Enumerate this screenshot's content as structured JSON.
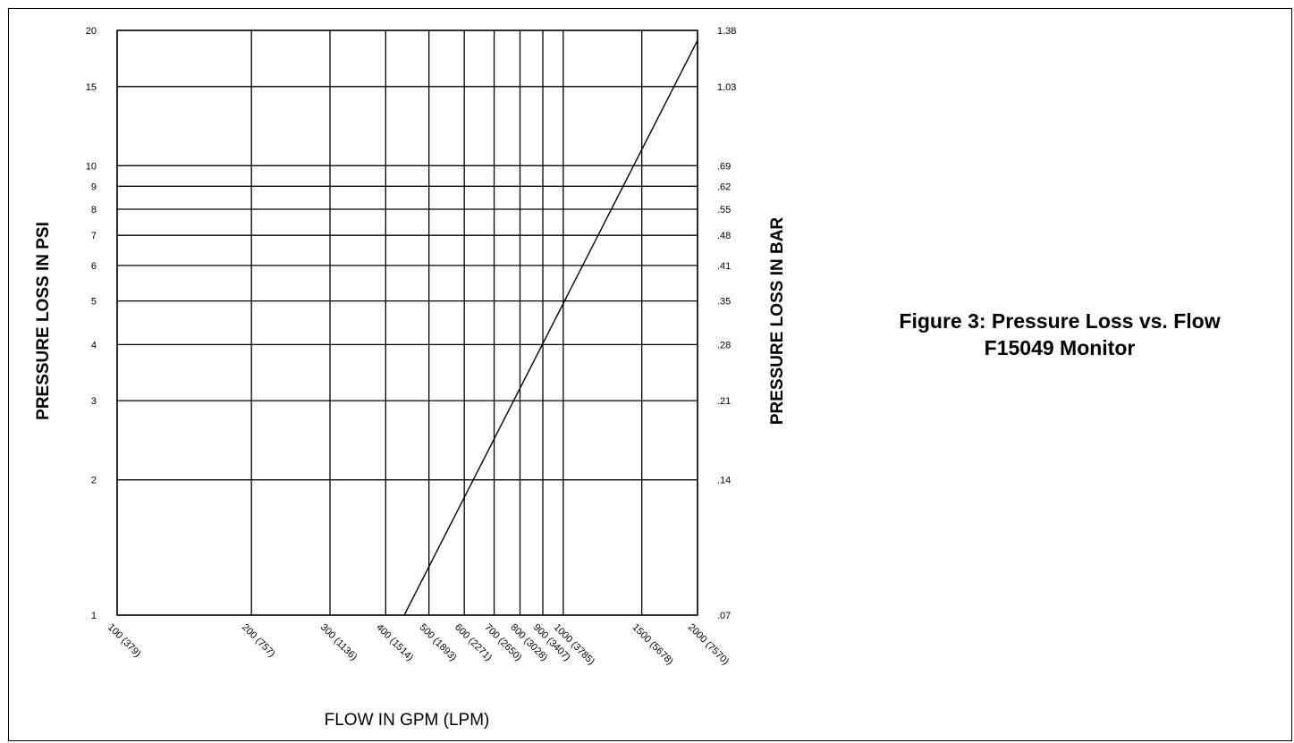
{
  "figure": {
    "caption_line1": "Figure 3: Pressure Loss vs. Flow",
    "caption_line2": "F15049 Monitor"
  },
  "chart_data": {
    "type": "line",
    "title": "",
    "xlabel": "FLOW IN GPM (LPM)",
    "ylabel": "PRESSURE LOSS IN PSI",
    "y2label": "PRESSURE LOSS IN BAR",
    "xscale": "log",
    "yscale": "log",
    "xlim": [
      100,
      2000
    ],
    "ylim": [
      1,
      20
    ],
    "grid": true,
    "x_ticks": [
      {
        "value": 100,
        "label": "100 (379)"
      },
      {
        "value": 200,
        "label": "200 (757)"
      },
      {
        "value": 300,
        "label": "300 (1136)"
      },
      {
        "value": 400,
        "label": "400 (1514)"
      },
      {
        "value": 500,
        "label": "500 (1893)"
      },
      {
        "value": 600,
        "label": "600 (2271)"
      },
      {
        "value": 700,
        "label": "700 (2650)"
      },
      {
        "value": 800,
        "label": "800 (3028)"
      },
      {
        "value": 900,
        "label": "900 (3407)"
      },
      {
        "value": 1000,
        "label": "1000 (3785)"
      },
      {
        "value": 1500,
        "label": "1500 (5678)"
      },
      {
        "value": 2000,
        "label": "2000 (7570)"
      }
    ],
    "y_ticks": [
      {
        "value": 1,
        "label": "1",
        "right_label": ".07"
      },
      {
        "value": 2,
        "label": "2",
        "right_label": ".14"
      },
      {
        "value": 3,
        "label": "3",
        "right_label": ".21"
      },
      {
        "value": 4,
        "label": "4",
        "right_label": ".28"
      },
      {
        "value": 5,
        "label": "5",
        "right_label": ".35"
      },
      {
        "value": 6,
        "label": "6",
        "right_label": ".41"
      },
      {
        "value": 7,
        "label": "7",
        "right_label": ".48"
      },
      {
        "value": 8,
        "label": "8",
        "right_label": ".55"
      },
      {
        "value": 9,
        "label": "9",
        "right_label": ".62"
      },
      {
        "value": 10,
        "label": "10",
        "right_label": ".69"
      },
      {
        "value": 15,
        "label": "15",
        "right_label": "1.03"
      },
      {
        "value": 20,
        "label": "20",
        "right_label": "1.38"
      }
    ],
    "series": [
      {
        "color": "#000000",
        "points": [
          {
            "x": 440,
            "y": 1
          },
          {
            "x": 2000,
            "y": 19
          }
        ]
      }
    ]
  }
}
